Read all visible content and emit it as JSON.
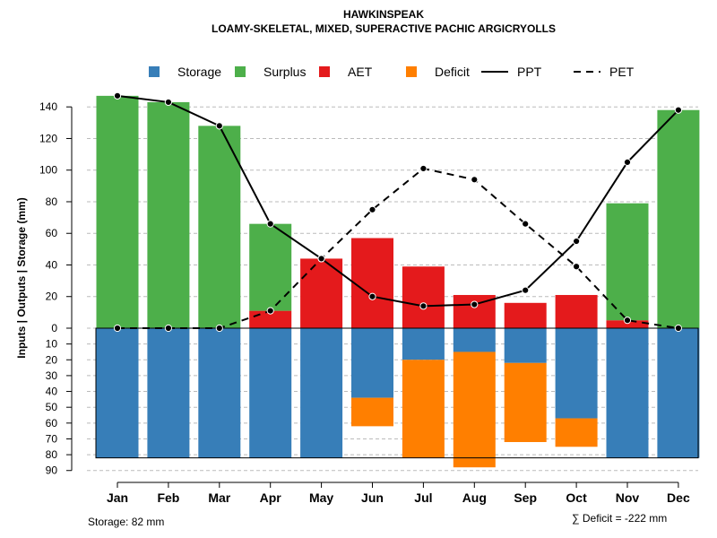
{
  "chart_data": {
    "type": "bar",
    "title": "HAWKINSPEAK",
    "subtitle": "LOAMY-SKELETAL, MIXED, SUPERACTIVE PACHIC ARGICRYOLLS",
    "ylabel": "Inputs | Outputs | Storage    (mm)",
    "categories": [
      "Jan",
      "Feb",
      "Mar",
      "Apr",
      "May",
      "Jun",
      "Jul",
      "Aug",
      "Sep",
      "Oct",
      "Nov",
      "Dec"
    ],
    "ylim_top": [
      0,
      150
    ],
    "ylim_bottom": [
      0,
      90
    ],
    "yticks_top": [
      0,
      20,
      40,
      60,
      80,
      100,
      120,
      140
    ],
    "yticks_bottom": [
      10,
      20,
      30,
      40,
      50,
      60,
      70,
      80,
      90
    ],
    "legend_position": "top",
    "legend": [
      {
        "label": "Storage",
        "kind": "box",
        "color": "#377eb8"
      },
      {
        "label": "Surplus",
        "kind": "box",
        "color": "#4daf4a"
      },
      {
        "label": "AET",
        "kind": "box",
        "color": "#e41a1c"
      },
      {
        "label": "Deficit",
        "kind": "box",
        "color": "#ff7f00"
      },
      {
        "label": "PPT",
        "kind": "solid",
        "color": "#000000"
      },
      {
        "label": "PET",
        "kind": "dashed",
        "color": "#000000"
      }
    ],
    "series": [
      {
        "name": "AET",
        "values": [
          0,
          0,
          0,
          11,
          44,
          57,
          39,
          21,
          16,
          21,
          5,
          0
        ]
      },
      {
        "name": "Surplus",
        "values": [
          147,
          143,
          128,
          55,
          0,
          0,
          0,
          0,
          0,
          0,
          74,
          138
        ]
      },
      {
        "name": "Storage",
        "values": [
          82,
          82,
          82,
          82,
          82,
          44,
          20,
          15,
          22,
          57,
          82,
          82
        ]
      },
      {
        "name": "Deficit",
        "values": [
          0,
          0,
          0,
          0,
          0,
          18,
          62,
          73,
          50,
          18,
          0,
          0
        ]
      },
      {
        "name": "PPT",
        "values": [
          147,
          143,
          128,
          66,
          44,
          20,
          14,
          15,
          24,
          55,
          105,
          138
        ]
      },
      {
        "name": "PET",
        "values": [
          0,
          0,
          0,
          11,
          44,
          75,
          101,
          94,
          66,
          39,
          5,
          0
        ]
      }
    ],
    "storage_note": "Storage: 82 mm",
    "deficit_note": "∑ Deficit = -222 mm"
  }
}
